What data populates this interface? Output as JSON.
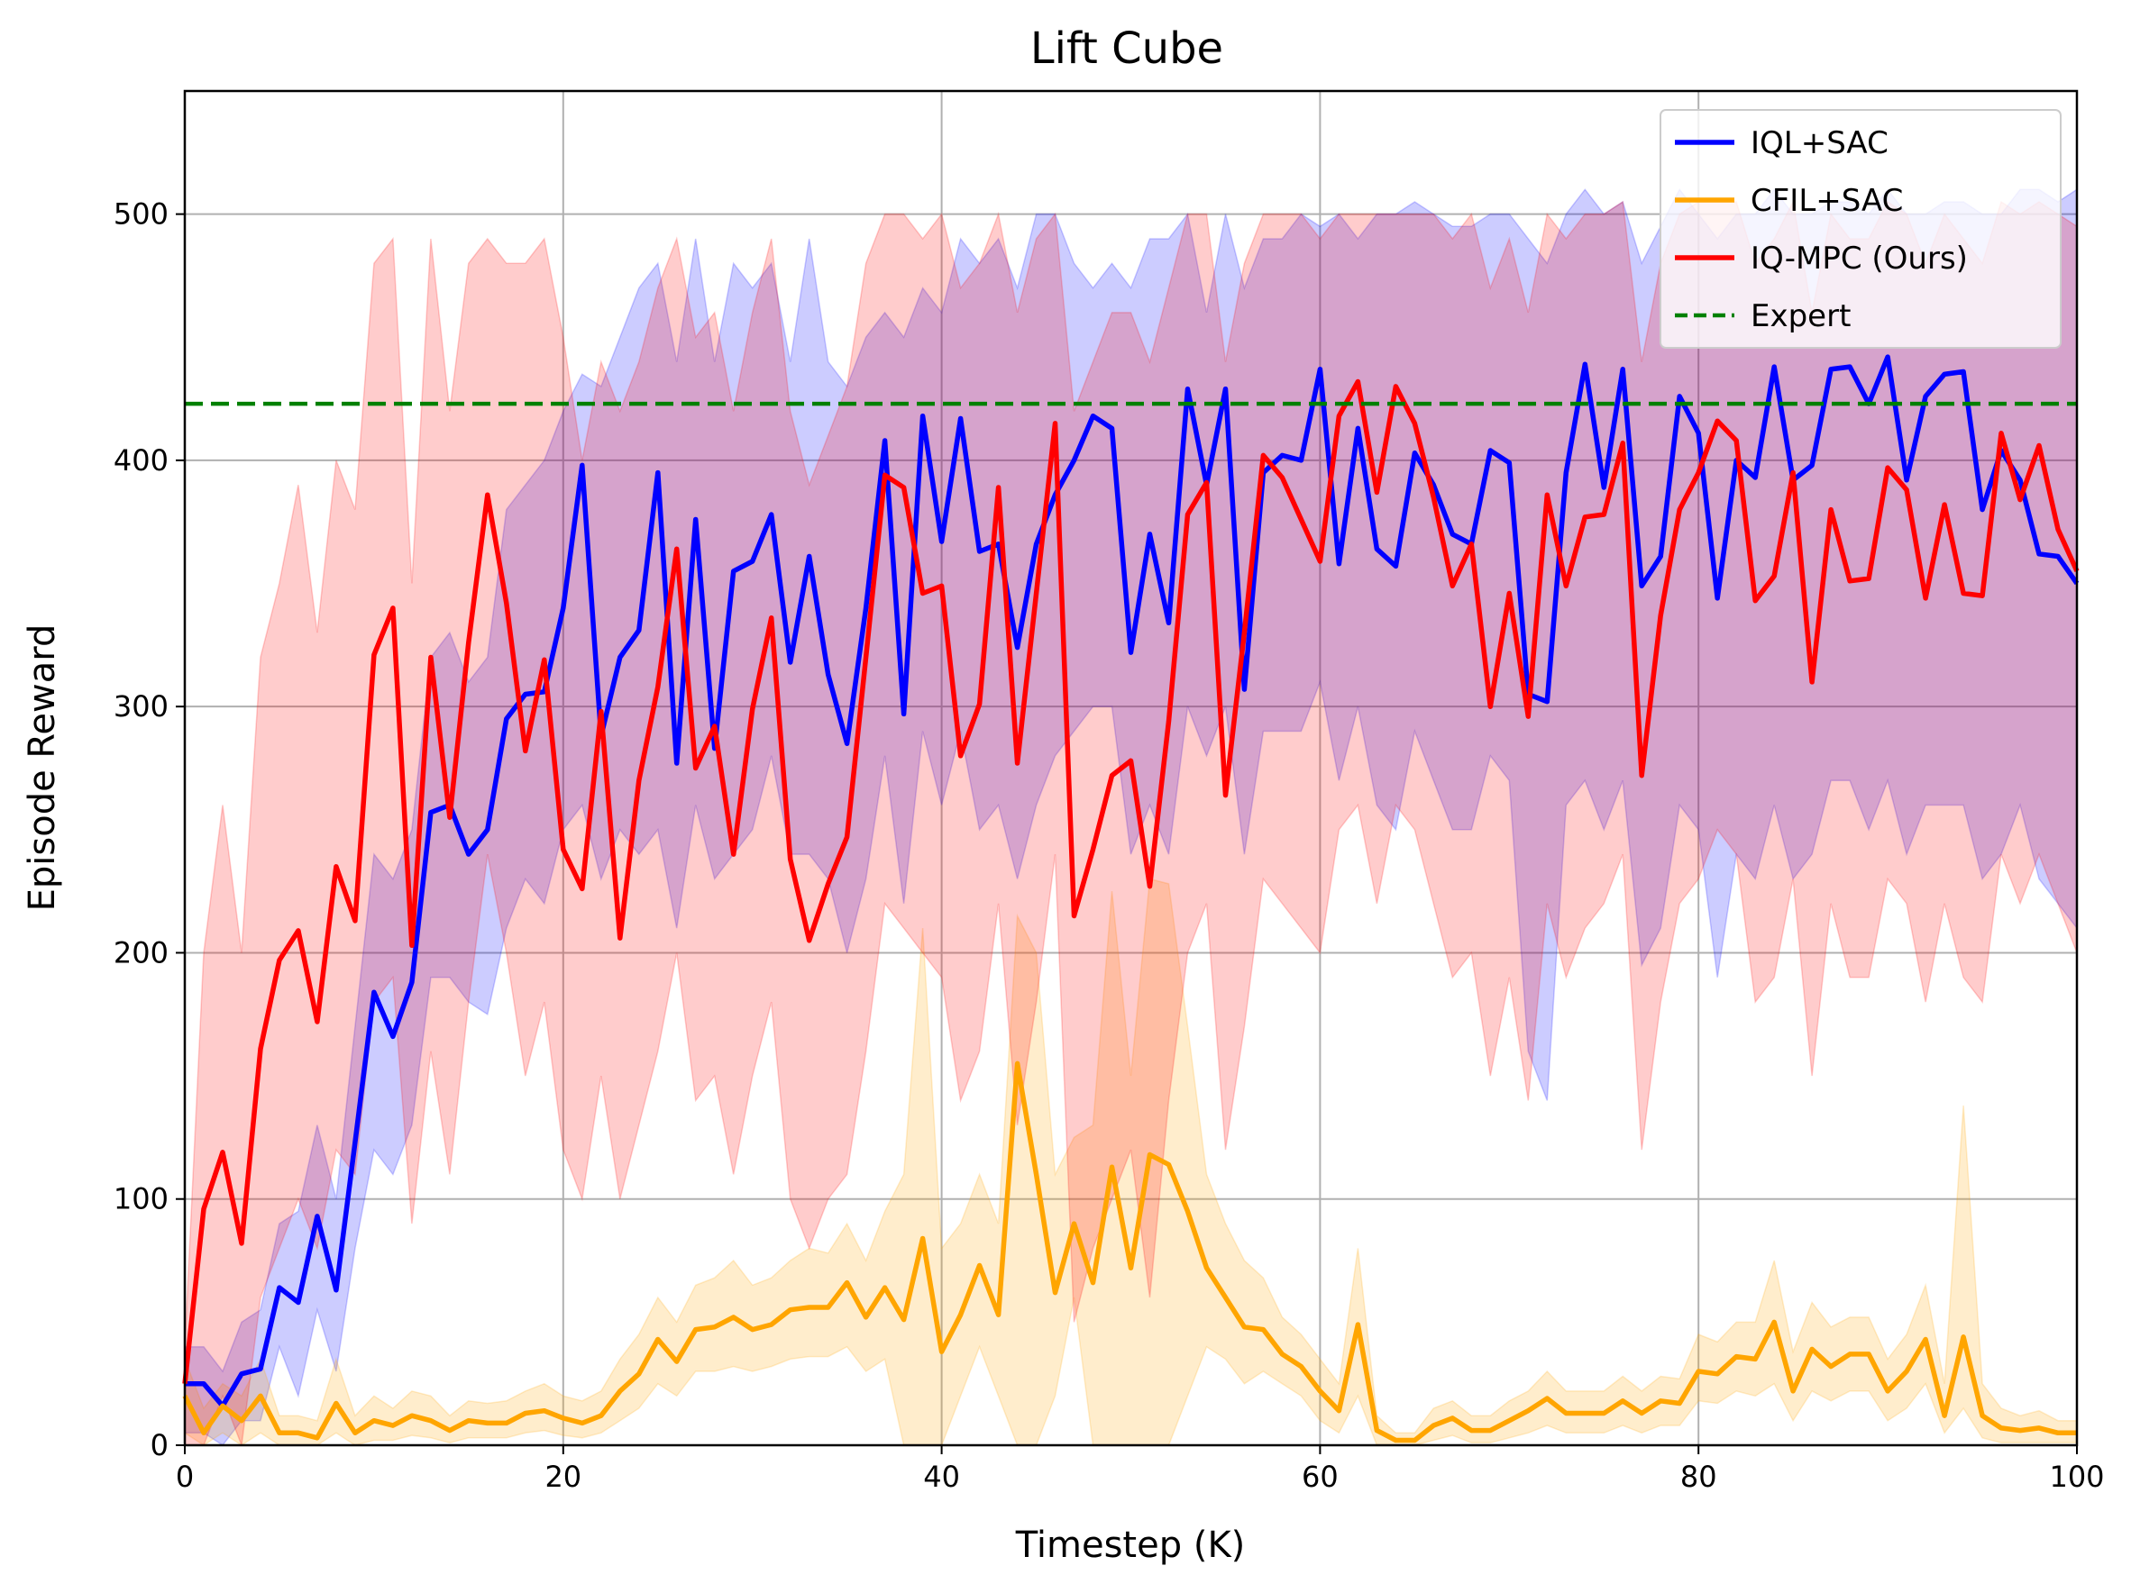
{
  "chart_data": {
    "type": "line",
    "title": "Lift Cube",
    "xlabel": "Timestep (K)",
    "ylabel": "Episode Reward",
    "xlim": [
      0,
      100
    ],
    "ylim": [
      0,
      550
    ],
    "xticks": [
      0,
      20,
      40,
      60,
      80,
      100
    ],
    "yticks": [
      0,
      100,
      200,
      300,
      400,
      500
    ],
    "grid": true,
    "legend_position": "top-right",
    "series": [
      {
        "name": "IQL+SAC",
        "color": "#0000ff",
        "style": "solid",
        "x": [
          0,
          1,
          2,
          3,
          4,
          5,
          6,
          7,
          8,
          9,
          10,
          11,
          12,
          13,
          14,
          15,
          16,
          17,
          18,
          19,
          20,
          21,
          22,
          23,
          24,
          25,
          26,
          27,
          28,
          29,
          30,
          31,
          32,
          33,
          34,
          35,
          36,
          37,
          38,
          39,
          40,
          41,
          42,
          43,
          44,
          45,
          46,
          47,
          48,
          49,
          50,
          51,
          52,
          53,
          54,
          55,
          56,
          57,
          58,
          59,
          60,
          61,
          62,
          63,
          64,
          65,
          66,
          67,
          68,
          69,
          70,
          71,
          72,
          73,
          74,
          75,
          76,
          77,
          78,
          79,
          80,
          81,
          82,
          83,
          84,
          85,
          86,
          87,
          88,
          89,
          90,
          91,
          92,
          93,
          94,
          95,
          96,
          97,
          98,
          99,
          100
        ],
        "values": [
          25,
          25,
          16,
          29,
          31,
          64,
          58,
          93,
          63,
          123,
          184,
          166,
          188,
          257,
          260,
          240,
          250,
          295,
          305,
          306,
          340,
          398,
          288,
          320,
          331,
          395,
          277,
          376,
          283,
          355,
          359,
          378,
          318,
          361,
          313,
          285,
          340,
          408,
          297,
          418,
          367,
          417,
          363,
          366,
          324,
          366,
          386,
          400,
          418,
          413,
          322,
          370,
          334,
          429,
          390,
          429,
          307,
          395,
          402,
          400,
          437,
          358,
          413,
          364,
          357,
          403,
          390,
          370,
          366,
          404,
          399,
          305,
          302,
          395,
          439,
          389,
          437,
          349,
          361,
          426,
          411,
          344,
          400,
          393,
          438,
          392,
          398,
          437,
          438,
          423,
          442,
          392,
          426,
          435,
          436,
          380,
          404,
          392,
          362,
          361,
          350
        ],
        "lower": [
          5,
          5,
          0,
          10,
          10,
          40,
          20,
          55,
          30,
          80,
          120,
          110,
          130,
          190,
          190,
          180,
          175,
          210,
          230,
          220,
          250,
          260,
          230,
          250,
          240,
          250,
          210,
          260,
          230,
          240,
          250,
          280,
          240,
          240,
          230,
          200,
          230,
          280,
          220,
          290,
          260,
          290,
          250,
          260,
          230,
          260,
          280,
          290,
          300,
          300,
          240,
          260,
          240,
          300,
          280,
          300,
          240,
          290,
          290,
          290,
          310,
          270,
          300,
          260,
          250,
          290,
          270,
          250,
          250,
          280,
          270,
          160,
          140,
          260,
          270,
          250,
          270,
          195,
          210,
          260,
          250,
          190,
          240,
          230,
          260,
          230,
          240,
          270,
          270,
          250,
          270,
          240,
          260,
          260,
          260,
          230,
          240,
          260,
          230,
          220,
          210
        ],
        "upper": [
          40,
          40,
          30,
          50,
          55,
          90,
          95,
          130,
          100,
          170,
          240,
          230,
          250,
          320,
          330,
          310,
          320,
          380,
          390,
          400,
          420,
          435,
          430,
          450,
          470,
          480,
          440,
          490,
          440,
          480,
          470,
          480,
          440,
          490,
          440,
          430,
          450,
          460,
          450,
          470,
          460,
          490,
          480,
          490,
          470,
          500,
          500,
          480,
          470,
          480,
          470,
          490,
          490,
          500,
          460,
          500,
          470,
          490,
          490,
          500,
          495,
          500,
          490,
          500,
          500,
          505,
          500,
          495,
          495,
          500,
          500,
          490,
          480,
          500,
          510,
          500,
          505,
          480,
          495,
          510,
          500,
          490,
          500,
          500,
          510,
          500,
          500,
          505,
          505,
          500,
          510,
          500,
          500,
          505,
          505,
          500,
          500,
          510,
          510,
          505,
          510
        ]
      },
      {
        "name": "CFIL+SAC",
        "color": "#ffa500",
        "style": "solid",
        "x": [
          0,
          1,
          2,
          3,
          4,
          5,
          6,
          7,
          8,
          9,
          10,
          11,
          12,
          13,
          14,
          15,
          16,
          17,
          18,
          19,
          20,
          21,
          22,
          23,
          24,
          25,
          26,
          27,
          28,
          29,
          30,
          31,
          32,
          33,
          34,
          35,
          36,
          37,
          38,
          39,
          40,
          41,
          42,
          43,
          44,
          45,
          46,
          47,
          48,
          49,
          50,
          51,
          52,
          53,
          54,
          55,
          56,
          57,
          58,
          59,
          60,
          61,
          62,
          63,
          64,
          65,
          66,
          67,
          68,
          69,
          70,
          71,
          72,
          73,
          74,
          75,
          76,
          77,
          78,
          79,
          80,
          81,
          82,
          83,
          84,
          85,
          86,
          87,
          88,
          89,
          90,
          91,
          92,
          93,
          94,
          95,
          96,
          97,
          98,
          99,
          100
        ],
        "values": [
          20,
          5,
          16,
          10,
          20,
          5,
          5,
          3,
          17,
          5,
          10,
          8,
          12,
          10,
          6,
          10,
          9,
          9,
          13,
          14,
          11,
          9,
          12,
          22,
          29,
          43,
          34,
          47,
          48,
          52,
          47,
          49,
          55,
          56,
          56,
          66,
          52,
          64,
          51,
          84,
          38,
          53,
          73,
          53,
          155,
          110,
          62,
          90,
          66,
          113,
          72,
          118,
          114,
          95,
          72,
          60,
          48,
          47,
          37,
          32,
          22,
          14,
          49,
          6,
          2,
          2,
          8,
          11,
          6,
          6,
          10,
          14,
          19,
          13,
          13,
          13,
          18,
          13,
          18,
          17,
          30,
          29,
          36,
          35,
          50,
          22,
          39,
          32,
          37,
          37,
          22,
          30,
          43,
          12,
          44,
          12,
          7,
          6,
          7,
          5,
          5
        ],
        "lower": [
          5,
          0,
          5,
          0,
          5,
          0,
          0,
          0,
          5,
          0,
          2,
          2,
          4,
          3,
          1,
          3,
          3,
          3,
          5,
          6,
          4,
          3,
          5,
          10,
          15,
          25,
          20,
          30,
          30,
          32,
          30,
          32,
          35,
          36,
          36,
          40,
          30,
          35,
          0,
          0,
          0,
          20,
          40,
          20,
          0,
          0,
          20,
          60,
          0,
          0,
          0,
          0,
          0,
          20,
          40,
          35,
          25,
          30,
          25,
          20,
          10,
          5,
          20,
          0,
          0,
          0,
          2,
          4,
          1,
          1,
          3,
          5,
          8,
          5,
          5,
          5,
          8,
          5,
          8,
          8,
          18,
          17,
          22,
          20,
          25,
          10,
          22,
          18,
          22,
          22,
          10,
          15,
          25,
          5,
          15,
          3,
          1,
          1,
          1,
          1,
          1
        ],
        "upper": [
          35,
          15,
          25,
          20,
          35,
          12,
          12,
          10,
          35,
          12,
          20,
          15,
          22,
          20,
          12,
          18,
          17,
          18,
          22,
          25,
          20,
          18,
          22,
          35,
          45,
          60,
          50,
          65,
          68,
          75,
          65,
          68,
          75,
          80,
          78,
          90,
          75,
          95,
          110,
          210,
          80,
          90,
          110,
          90,
          215,
          200,
          110,
          125,
          130,
          225,
          150,
          230,
          228,
          170,
          110,
          90,
          75,
          68,
          52,
          45,
          35,
          25,
          80,
          12,
          5,
          5,
          15,
          18,
          12,
          12,
          18,
          22,
          30,
          22,
          22,
          22,
          28,
          22,
          28,
          27,
          45,
          42,
          50,
          50,
          75,
          38,
          58,
          48,
          52,
          52,
          35,
          45,
          65,
          25,
          138,
          25,
          15,
          12,
          14,
          10,
          10
        ]
      },
      {
        "name": "IQ-MPC (Ours)",
        "color": "#ff0000",
        "style": "solid",
        "x": [
          0,
          1,
          2,
          3,
          4,
          5,
          6,
          7,
          8,
          9,
          10,
          11,
          12,
          13,
          14,
          15,
          16,
          17,
          18,
          19,
          20,
          21,
          22,
          23,
          24,
          25,
          26,
          27,
          28,
          29,
          30,
          31,
          32,
          33,
          34,
          35,
          36,
          37,
          38,
          39,
          40,
          41,
          42,
          43,
          44,
          45,
          46,
          47,
          48,
          49,
          50,
          51,
          52,
          53,
          54,
          55,
          56,
          57,
          58,
          59,
          60,
          61,
          62,
          63,
          64,
          65,
          66,
          67,
          68,
          69,
          70,
          71,
          72,
          73,
          74,
          75,
          76,
          77,
          78,
          79,
          80,
          81,
          82,
          83,
          84,
          85,
          86,
          87,
          88,
          89,
          90,
          91,
          92,
          93,
          94,
          95,
          96,
          97,
          98,
          99,
          100
        ],
        "values": [
          25,
          96,
          119,
          82,
          161,
          197,
          209,
          172,
          235,
          213,
          321,
          340,
          203,
          320,
          255,
          326,
          386,
          342,
          282,
          319,
          242,
          226,
          298,
          206,
          270,
          308,
          364,
          275,
          292,
          240,
          299,
          336,
          238,
          205,
          228,
          247,
          320,
          394,
          389,
          346,
          349,
          280,
          301,
          389,
          277,
          346,
          415,
          215,
          242,
          272,
          278,
          227,
          294,
          378,
          391,
          264,
          330,
          402,
          393,
          376,
          359,
          418,
          432,
          387,
          430,
          415,
          385,
          349,
          366,
          300,
          346,
          296,
          386,
          349,
          377,
          378,
          407,
          272,
          337,
          380,
          395,
          416,
          408,
          343,
          353,
          395,
          310,
          380,
          351,
          352,
          397,
          388,
          344,
          382,
          346,
          345,
          411,
          384,
          406,
          372,
          355
        ],
        "lower": [
          0,
          0,
          20,
          0,
          60,
          80,
          100,
          80,
          120,
          110,
          180,
          190,
          90,
          160,
          110,
          180,
          240,
          200,
          150,
          180,
          120,
          100,
          150,
          100,
          130,
          160,
          200,
          140,
          150,
          110,
          150,
          180,
          100,
          80,
          100,
          110,
          160,
          220,
          210,
          200,
          190,
          140,
          160,
          220,
          130,
          180,
          240,
          50,
          80,
          100,
          120,
          60,
          140,
          200,
          220,
          120,
          170,
          230,
          220,
          210,
          200,
          250,
          260,
          220,
          260,
          250,
          220,
          190,
          200,
          150,
          190,
          140,
          220,
          190,
          210,
          220,
          240,
          120,
          180,
          220,
          230,
          250,
          240,
          180,
          190,
          230,
          150,
          220,
          190,
          190,
          230,
          220,
          180,
          220,
          190,
          180,
          240,
          220,
          240,
          220,
          200
        ],
        "upper": [
          40,
          200,
          260,
          200,
          320,
          350,
          390,
          330,
          400,
          380,
          480,
          490,
          350,
          490,
          420,
          480,
          490,
          480,
          480,
          490,
          450,
          400,
          440,
          420,
          440,
          470,
          490,
          450,
          460,
          420,
          460,
          490,
          420,
          390,
          410,
          430,
          480,
          500,
          500,
          490,
          500,
          470,
          480,
          500,
          460,
          490,
          500,
          420,
          440,
          460,
          460,
          440,
          470,
          500,
          500,
          440,
          480,
          500,
          500,
          500,
          490,
          500,
          500,
          500,
          500,
          500,
          500,
          490,
          500,
          470,
          490,
          460,
          500,
          490,
          500,
          500,
          505,
          440,
          480,
          500,
          505,
          505,
          505,
          480,
          490,
          505,
          460,
          500,
          490,
          490,
          505,
          500,
          480,
          500,
          490,
          480,
          505,
          500,
          505,
          500,
          495
        ]
      },
      {
        "name": "Expert",
        "color": "#008000",
        "style": "dashed",
        "x": [
          0,
          100
        ],
        "values": [
          423,
          423
        ]
      }
    ]
  }
}
